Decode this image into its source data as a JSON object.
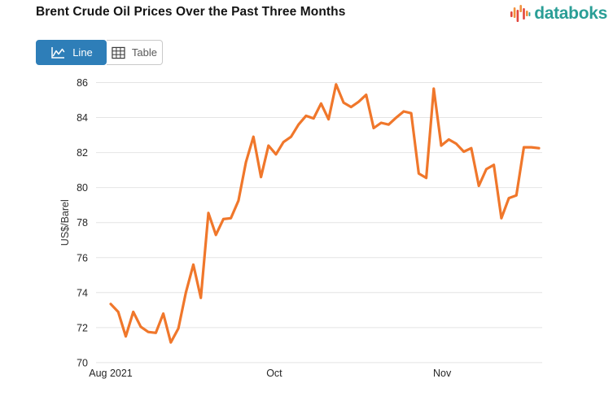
{
  "header": {
    "title": "Brent Crude Oil Prices Over the Past Three Months",
    "brand": "databoks"
  },
  "toolbar": {
    "line_label": "Line",
    "table_label": "Table"
  },
  "chart_data": {
    "type": "line",
    "title": "Brent Crude Oil Prices Over the Past Three Months",
    "xlabel": "",
    "ylabel": "US$/Barel",
    "ylim": [
      70,
      86
    ],
    "yticks": [
      70,
      72,
      74,
      76,
      78,
      80,
      82,
      84,
      86
    ],
    "xticks": [
      {
        "label": "Aug 2021",
        "t": 0.0
      },
      {
        "label": "Oct",
        "t": 0.382
      },
      {
        "label": "Nov",
        "t": 0.774
      }
    ],
    "grid": true,
    "legend_position": "none",
    "line_color": "#f0772b",
    "values": [
      73.35,
      72.9,
      71.5,
      72.9,
      72.05,
      71.75,
      71.7,
      72.8,
      71.15,
      71.95,
      74.0,
      75.6,
      73.7,
      78.55,
      77.3,
      78.2,
      78.25,
      79.25,
      81.45,
      82.9,
      80.6,
      82.4,
      81.9,
      82.6,
      82.9,
      83.6,
      84.1,
      83.95,
      84.8,
      83.9,
      85.9,
      84.85,
      84.6,
      84.9,
      85.3,
      83.4,
      83.7,
      83.6,
      84.0,
      84.35,
      84.25,
      80.8,
      80.55,
      85.65,
      82.4,
      82.75,
      82.5,
      82.05,
      82.25,
      80.1,
      81.05,
      81.3,
      78.25,
      79.4,
      79.55,
      82.3,
      82.3,
      82.25
    ]
  },
  "colors": {
    "line_orange": "#f0772b",
    "button_blue": "#2e7eb8",
    "brand_teal": "#2a9e96",
    "logo_red": "#e2453c",
    "logo_orange": "#f2913d",
    "grid_gray": "#e4e4e4",
    "tick_text": "#262626"
  }
}
